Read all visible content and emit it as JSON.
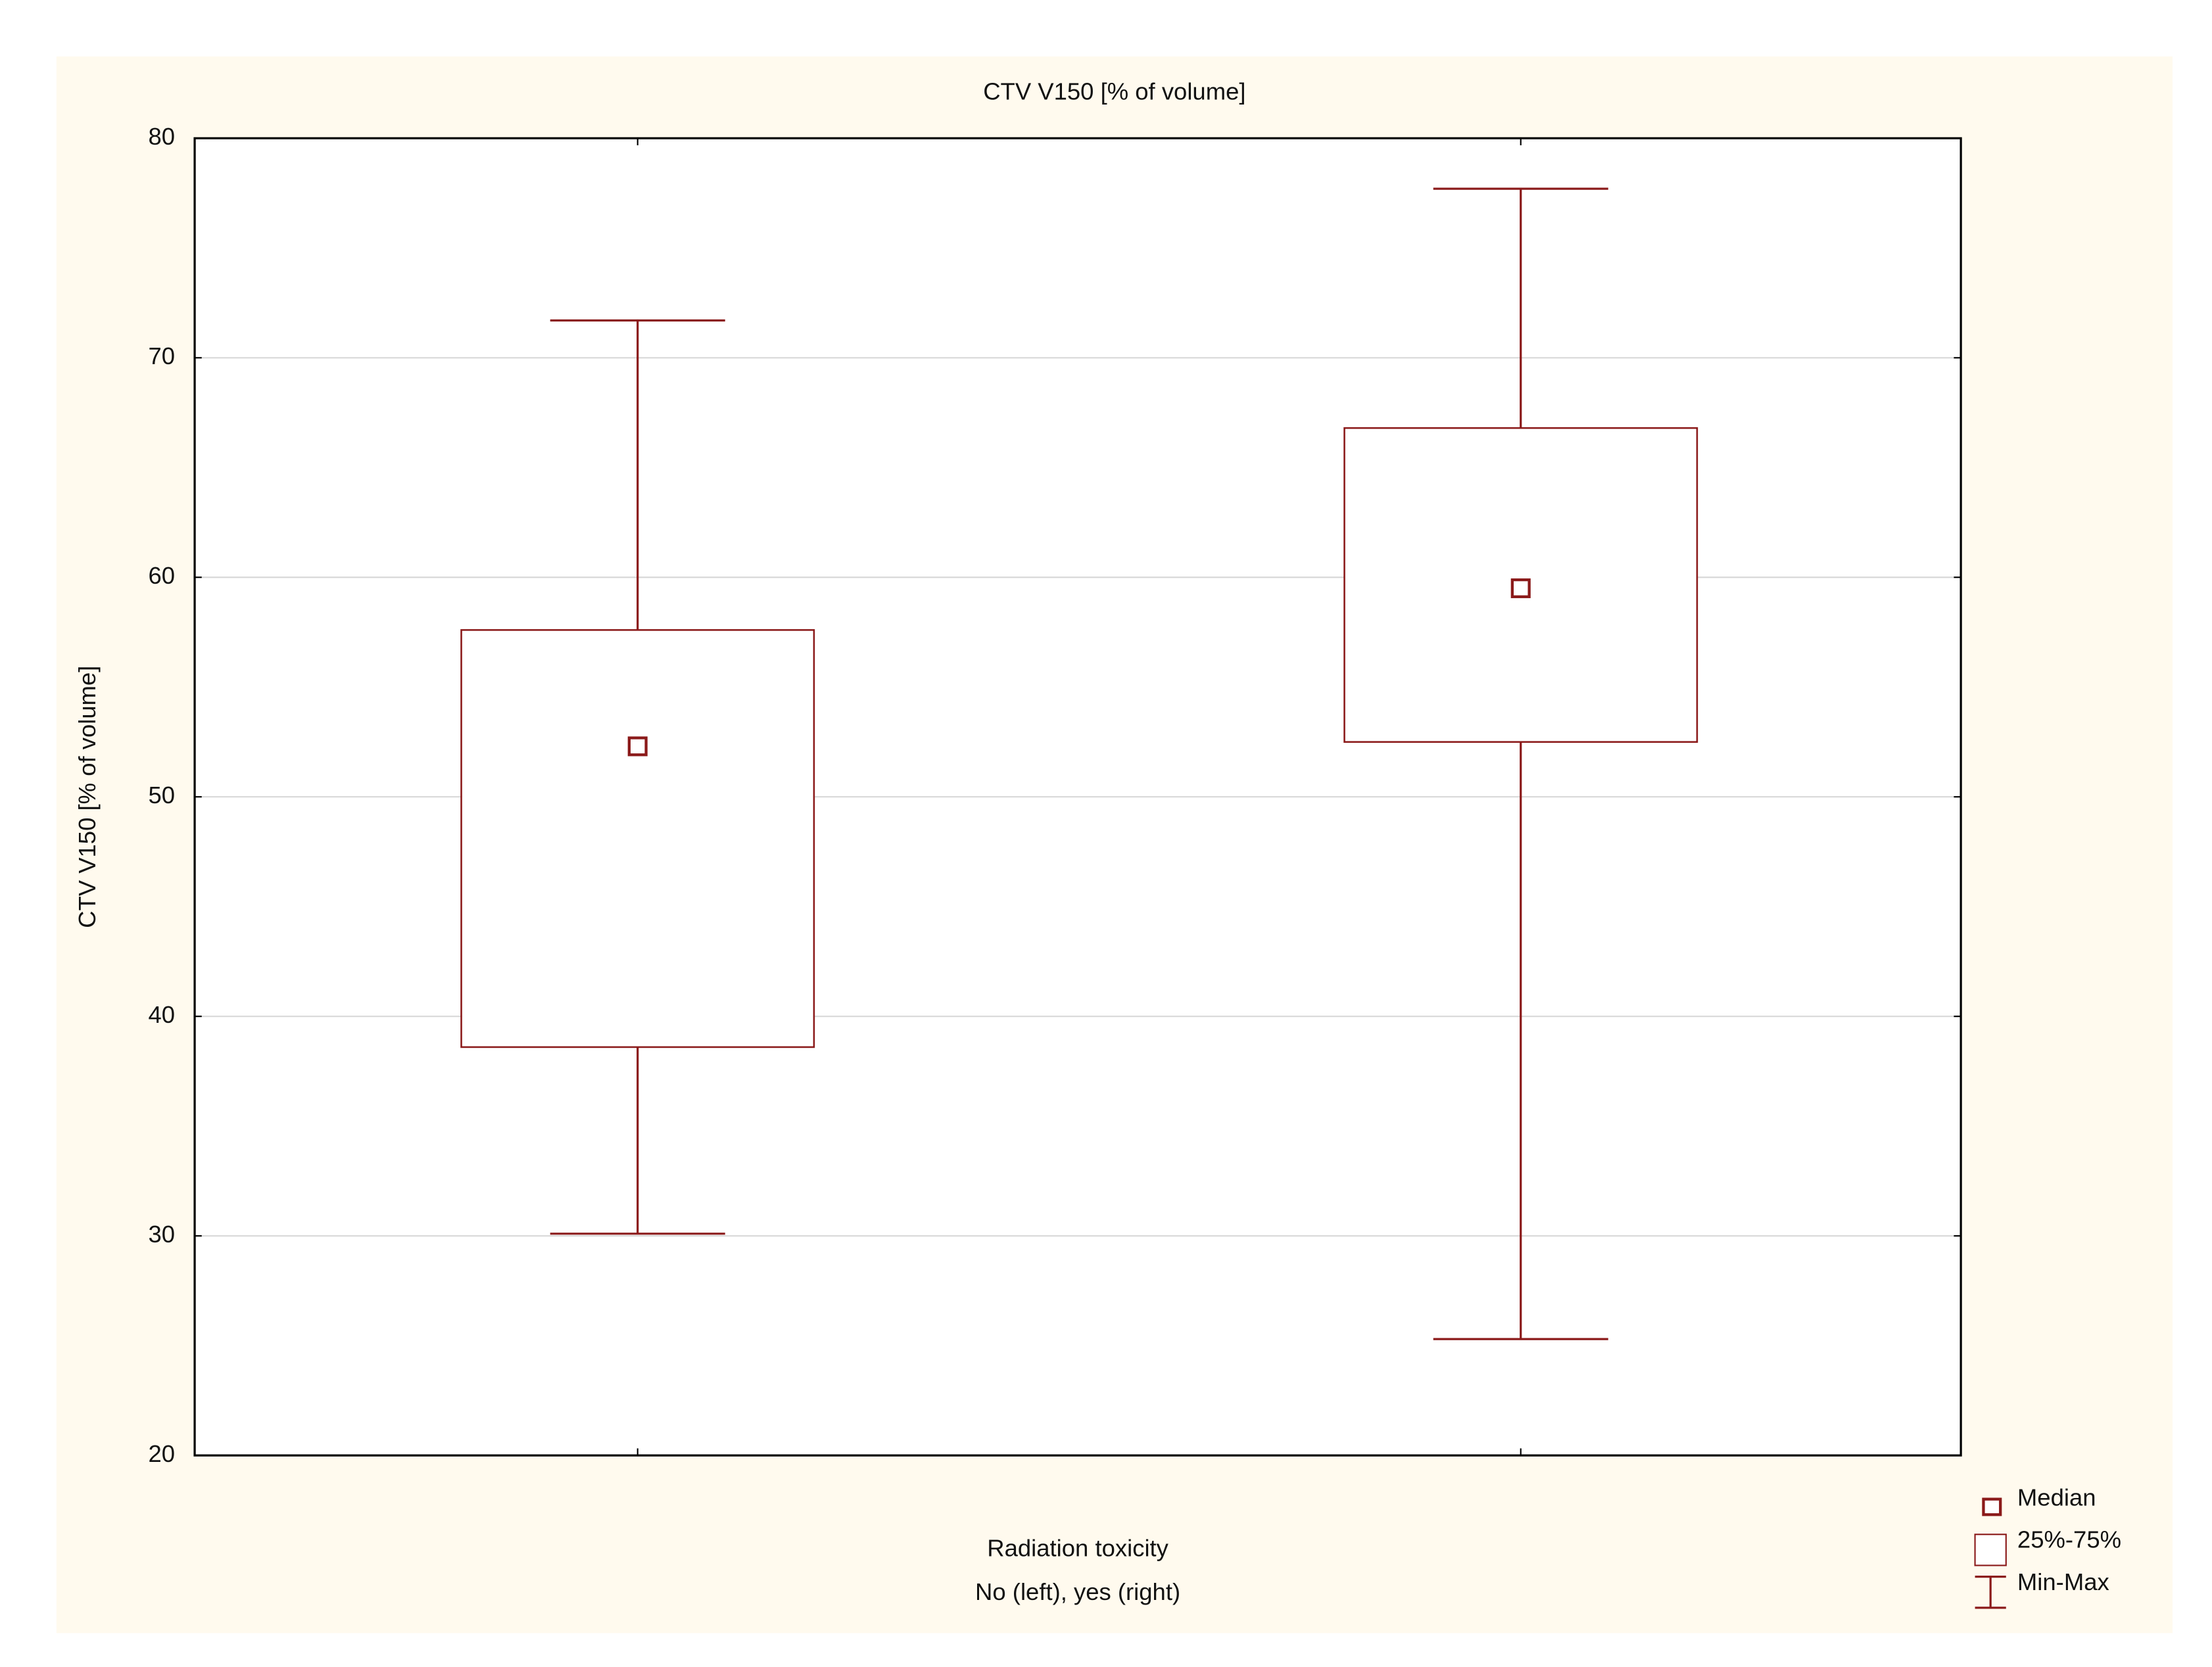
{
  "chart_data": {
    "type": "box",
    "title": "CTV V150 [% of volume]",
    "y_label": "CTV V150 [% of volume]",
    "x_label": "Radiation toxicity",
    "x_sublabel": "No (left), yes (right)",
    "categories": [
      null,
      null
    ],
    "boxes": [
      {
        "min": 30.1,
        "q1": 38.6,
        "median": 52.3,
        "q3": 57.6,
        "max": 71.7
      },
      {
        "min": 25.3,
        "q1": 52.5,
        "median": 59.5,
        "q3": 66.8,
        "max": 77.7
      }
    ],
    "legend": [
      "Median",
      "25%-75%",
      "Min-Max"
    ],
    "color": "#8b1a1a",
    "ylim": [
      20,
      80
    ],
    "yticks": [
      20,
      30,
      40,
      50,
      60,
      70,
      80
    ],
    "grid": true
  }
}
